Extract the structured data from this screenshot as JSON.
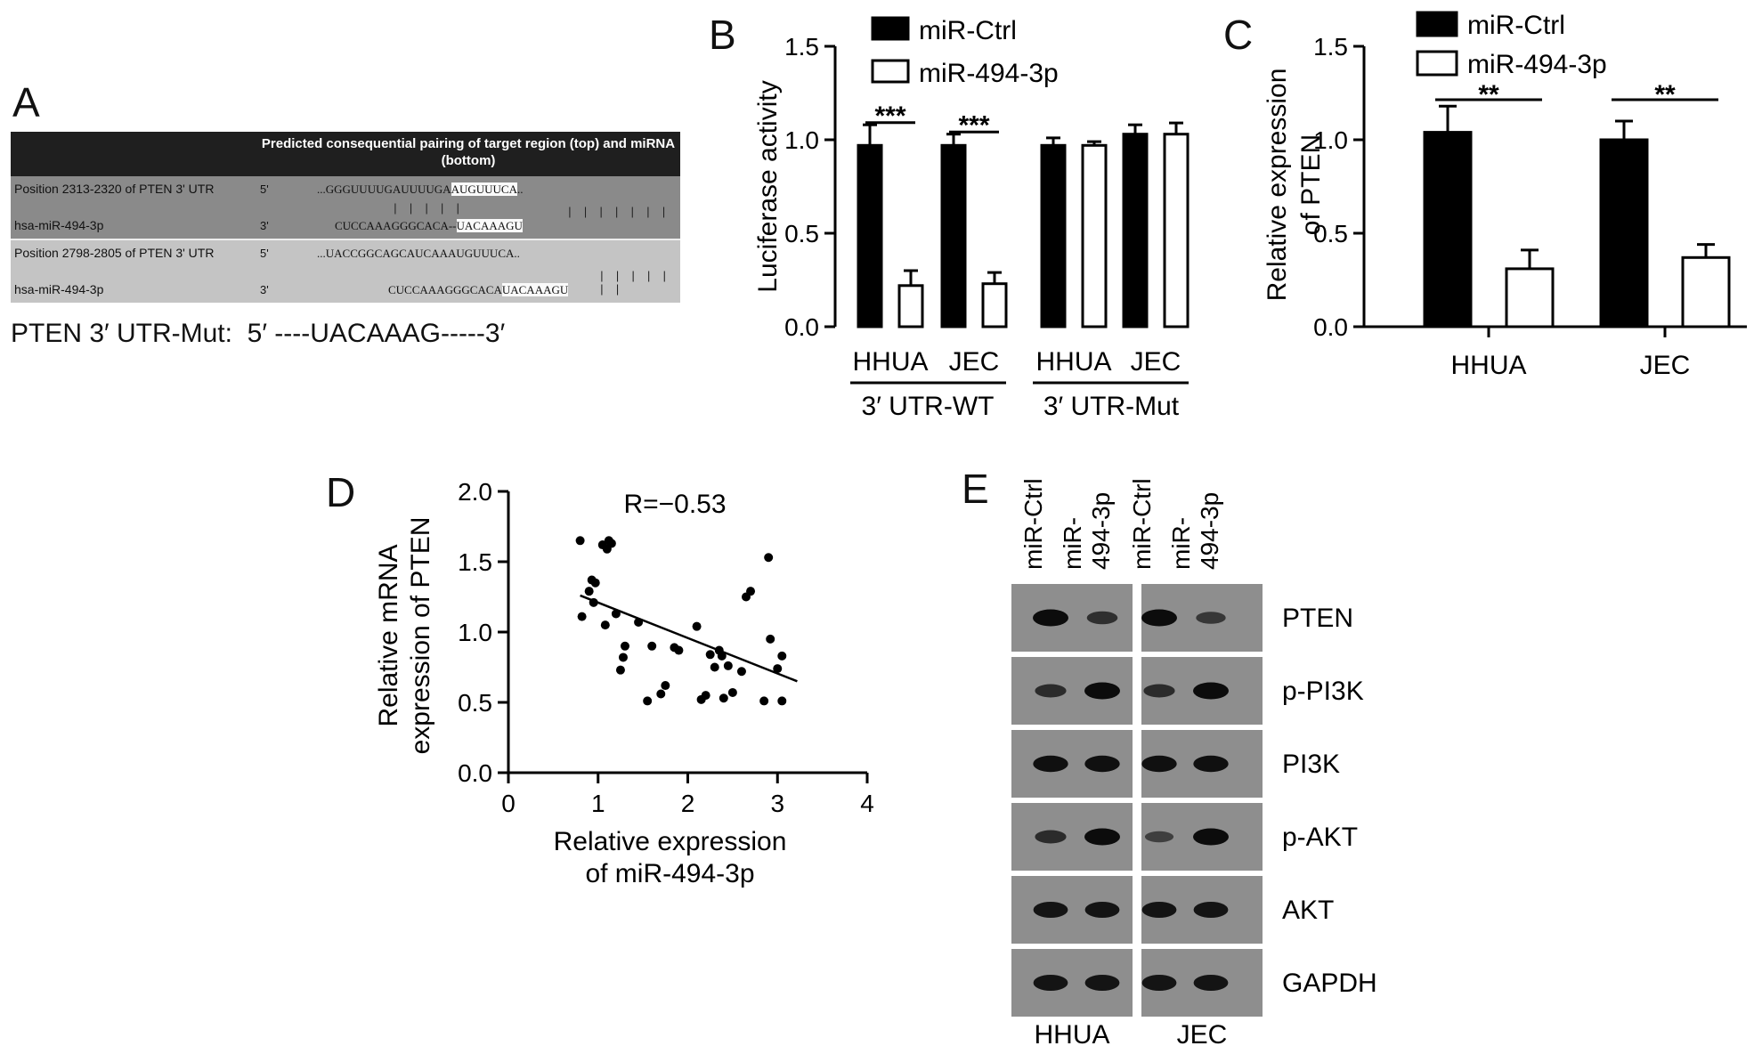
{
  "panels": {
    "A": "A",
    "B": "B",
    "C": "C",
    "D": "D",
    "E": "E"
  },
  "panelA": {
    "header": "Predicted consequential pairing of target region (top) and miRNA (bottom)",
    "rows": [
      {
        "label": "Position 2313-2320 of PTEN 3' UTR",
        "prime": "5'",
        "seq_pre": "...GGGUUUUGAUUUUGA",
        "seq_hl": "AUGUUUCA",
        "seq_post": "..",
        "shade": "dark"
      },
      {
        "label": "hsa-miR-494-3p",
        "prime": "3'",
        "seq_pre": "CUCCAAAGGGCACA--",
        "seq_hl": "UACAAAGU",
        "seq_post": "",
        "shade": "dark"
      },
      {
        "label": "Position 2798-2805 of PTEN 3' UTR",
        "prime": "5'",
        "seq_pre": "...UACCGGCAGCAUCAAAUGUUUCA",
        "seq_hl": "",
        "seq_post": "..",
        "shade": "light"
      },
      {
        "label": "hsa-miR-494-3p",
        "prime": "3'",
        "seq_pre": "CUCCAAAGGGCACA",
        "seq_hl": "UACAAAGU",
        "seq_post": "",
        "shade": "light"
      }
    ],
    "pair_marks": {
      "row1_left": "| | | | |",
      "row1_right": "| | | | | | |",
      "row2_right": "| | | | | | |"
    },
    "mut_label": "PTEN 3′ UTR-Mut:",
    "mut_seq": "5′ ----UACAAAG-----3′"
  },
  "chart_data": [
    {
      "panel": "B",
      "type": "bar",
      "ylabel": "Luciferase activity",
      "ylim": [
        0,
        1.5
      ],
      "yticks": [
        "0.0",
        "0.5",
        "1.0",
        "1.5"
      ],
      "categories": [
        "HHUA",
        "JEC",
        "HHUA",
        "JEC"
      ],
      "groups": [
        "3′ UTR-WT",
        "3′ UTR-Mut"
      ],
      "series": [
        {
          "name": "miR-Ctrl",
          "color": "#000000",
          "values": [
            0.97,
            0.97,
            0.97,
            1.03
          ],
          "errors": [
            0.11,
            0.06,
            0.04,
            0.05
          ]
        },
        {
          "name": "miR-494-3p",
          "color": "#ffffff",
          "values": [
            0.22,
            0.23,
            0.97,
            1.03
          ],
          "errors": [
            0.08,
            0.06,
            0.02,
            0.06
          ]
        }
      ],
      "annotations": [
        "***",
        "***"
      ]
    },
    {
      "panel": "C",
      "type": "bar",
      "ylabel_lines": [
        "Relative expression",
        "of PTEN"
      ],
      "ylim": [
        0,
        1.5
      ],
      "yticks": [
        "0.0",
        "0.5",
        "1.0",
        "1.5"
      ],
      "categories": [
        "HHUA",
        "JEC"
      ],
      "series": [
        {
          "name": "miR-Ctrl",
          "color": "#000000",
          "values": [
            1.04,
            1.0
          ],
          "errors": [
            0.14,
            0.1
          ]
        },
        {
          "name": "miR-494-3p",
          "color": "#ffffff",
          "values": [
            0.31,
            0.37
          ],
          "errors": [
            0.1,
            0.07
          ]
        }
      ],
      "annotations": [
        "**",
        "**"
      ]
    },
    {
      "panel": "D",
      "type": "scatter",
      "xlabel_lines": [
        "Relative expression",
        "of miR-494-3p"
      ],
      "ylabel_lines": [
        "Relative mRNA",
        "expression of PTEN"
      ],
      "xlim": [
        0,
        4
      ],
      "ylim": [
        0,
        2.0
      ],
      "xticks": [
        "0",
        "1",
        "2",
        "3",
        "4"
      ],
      "yticks": [
        "0.0",
        "0.5",
        "1.0",
        "1.5",
        "2.0"
      ],
      "annotation": "R=−0.53",
      "fit_line": [
        [
          0.8,
          1.26
        ],
        [
          3.22,
          0.65
        ]
      ],
      "points": [
        [
          0.8,
          1.65
        ],
        [
          0.82,
          1.11
        ],
        [
          0.9,
          1.29
        ],
        [
          0.93,
          1.37
        ],
        [
          0.95,
          1.21
        ],
        [
          0.97,
          1.35
        ],
        [
          1.05,
          1.62
        ],
        [
          1.1,
          1.59
        ],
        [
          1.12,
          1.65
        ],
        [
          1.15,
          1.63
        ],
        [
          1.08,
          1.05
        ],
        [
          1.2,
          1.13
        ],
        [
          1.25,
          0.73
        ],
        [
          1.28,
          0.82
        ],
        [
          1.3,
          0.9
        ],
        [
          1.45,
          1.07
        ],
        [
          1.55,
          0.51
        ],
        [
          1.6,
          0.9
        ],
        [
          1.7,
          0.56
        ],
        [
          1.75,
          0.62
        ],
        [
          1.85,
          0.89
        ],
        [
          1.9,
          0.87
        ],
        [
          2.1,
          1.04
        ],
        [
          2.15,
          0.52
        ],
        [
          2.2,
          0.55
        ],
        [
          2.25,
          0.84
        ],
        [
          2.3,
          0.75
        ],
        [
          2.35,
          0.87
        ],
        [
          2.38,
          0.83
        ],
        [
          2.4,
          0.53
        ],
        [
          2.45,
          0.76
        ],
        [
          2.5,
          0.57
        ],
        [
          2.6,
          0.72
        ],
        [
          2.65,
          1.25
        ],
        [
          2.7,
          1.29
        ],
        [
          2.85,
          0.51
        ],
        [
          2.9,
          1.53
        ],
        [
          2.92,
          0.95
        ],
        [
          3.0,
          0.74
        ],
        [
          3.05,
          0.83
        ],
        [
          3.05,
          0.51
        ]
      ]
    }
  ],
  "legend": {
    "ctrl": "miR-Ctrl",
    "mir": "miR-494-3p"
  },
  "panelB_group_labels": {
    "wt": "3′  UTR-WT",
    "mut": "3′  UTR-Mut"
  },
  "panelE": {
    "lane_labels": [
      "miR-Ctrl",
      "miR-494-3p",
      "miR-Ctrl",
      "miR-494-3p"
    ],
    "lane_label_lines": [
      [
        "miR-Ctrl"
      ],
      [
        "miR-",
        "494-3p"
      ],
      [
        "miR-Ctrl"
      ],
      [
        "miR-",
        "494-3p"
      ]
    ],
    "proteins": [
      "PTEN",
      "p-PI3K",
      "PI3K",
      "p-AKT",
      "AKT",
      "GAPDH"
    ],
    "cell_lines": [
      "HHUA",
      "JEC"
    ],
    "band_intensity": [
      [
        1.0,
        0.55,
        1.0,
        0.45
      ],
      [
        0.6,
        1.0,
        0.6,
        1.0
      ],
      [
        0.95,
        0.95,
        0.95,
        0.95
      ],
      [
        0.6,
        1.0,
        0.35,
        1.0
      ],
      [
        0.9,
        0.9,
        0.9,
        0.9
      ],
      [
        0.9,
        0.9,
        0.9,
        0.9
      ]
    ]
  }
}
